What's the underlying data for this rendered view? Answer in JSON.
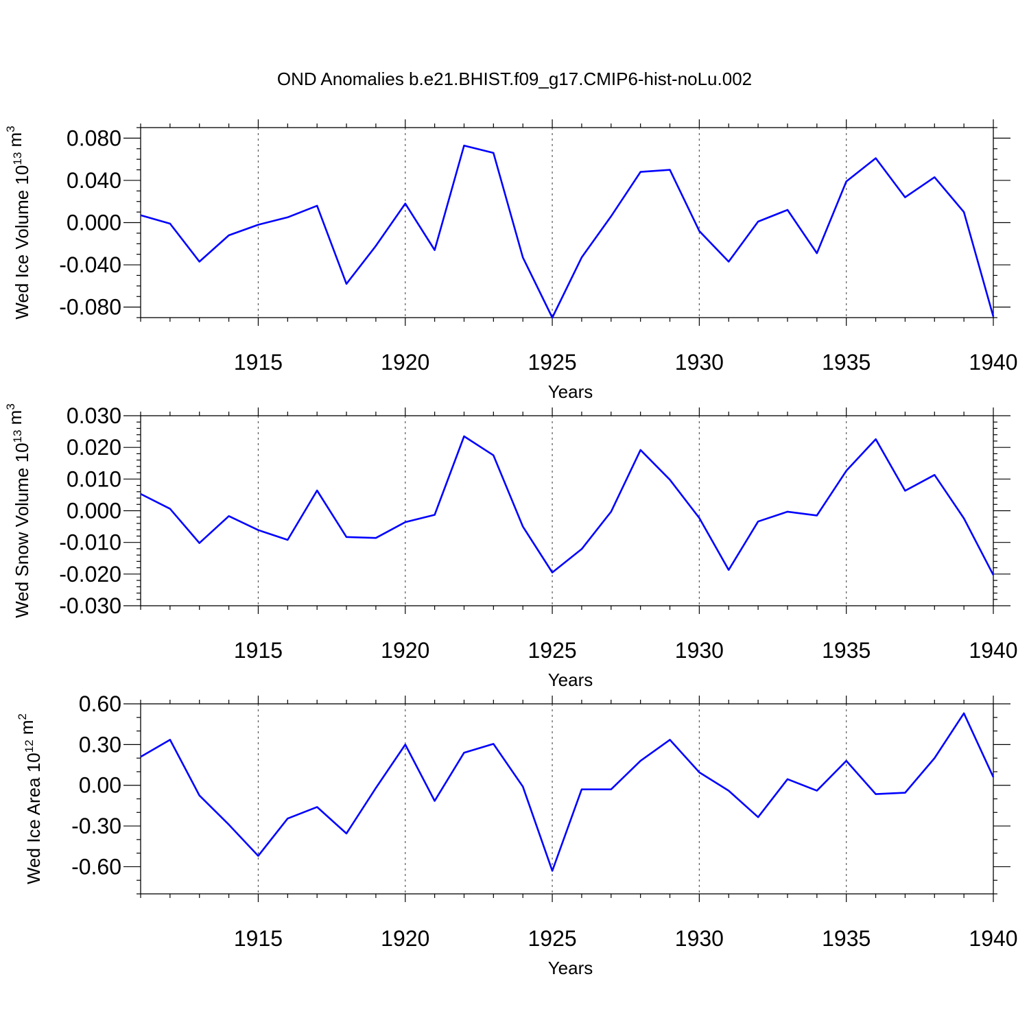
{
  "title": "OND Anomalies b.e21.BHIST.f09_g17.CMIP6-hist-noLu.002",
  "line_color": "#0000ff",
  "chart_data": [
    {
      "type": "line",
      "ylabel": "Wed Ice Volume 10",
      "ylabel_exp": "13",
      "ylabel_unit": " m",
      "ylabel_unit_exp": "3",
      "xlabel": "Years",
      "xlim": [
        1911,
        1940
      ],
      "ylim": [
        -0.09,
        0.09
      ],
      "yticks": [
        -0.08,
        -0.04,
        0.0,
        0.04,
        0.08
      ],
      "ytick_labels": [
        "-0.080",
        "-0.040",
        "0.000",
        "0.040",
        "0.080"
      ],
      "y_minor_step": 0.01,
      "xticks": [
        1915,
        1920,
        1925,
        1930,
        1935,
        1940
      ],
      "xtick_labels": [
        "1915",
        "1920",
        "1925",
        "1930",
        "1935",
        "1940"
      ],
      "x": [
        1911,
        1912,
        1913,
        1914,
        1915,
        1916,
        1917,
        1918,
        1919,
        1920,
        1921,
        1922,
        1923,
        1924,
        1925,
        1926,
        1927,
        1928,
        1929,
        1930,
        1931,
        1932,
        1933,
        1934,
        1935,
        1936,
        1937,
        1938,
        1939,
        1940
      ],
      "values": [
        0.007,
        -0.001,
        -0.037,
        -0.012,
        -0.002,
        0.005,
        0.016,
        -0.058,
        -0.022,
        0.018,
        -0.026,
        0.073,
        0.066,
        -0.033,
        -0.09,
        -0.033,
        0.006,
        0.048,
        0.05,
        -0.008,
        -0.037,
        0.001,
        0.012,
        -0.029,
        0.039,
        0.061,
        0.024,
        0.043,
        0.01,
        -0.089
      ]
    },
    {
      "type": "line",
      "ylabel": "Wed Snow Volume 10",
      "ylabel_exp": "13",
      "ylabel_unit": " m",
      "ylabel_unit_exp": "3",
      "xlabel": "Years",
      "xlim": [
        1911,
        1940
      ],
      "ylim": [
        -0.03,
        0.03
      ],
      "yticks": [
        -0.03,
        -0.02,
        -0.01,
        0.0,
        0.01,
        0.02,
        0.03
      ],
      "ytick_labels": [
        "-0.030",
        "-0.020",
        "-0.010",
        "0.000",
        "0.010",
        "0.020",
        "0.030"
      ],
      "y_minor_step": 0.002,
      "xticks": [
        1915,
        1920,
        1925,
        1930,
        1935,
        1940
      ],
      "xtick_labels": [
        "1915",
        "1920",
        "1925",
        "1930",
        "1935",
        "1940"
      ],
      "x": [
        1911,
        1912,
        1913,
        1914,
        1915,
        1916,
        1917,
        1918,
        1919,
        1920,
        1921,
        1922,
        1923,
        1924,
        1925,
        1926,
        1927,
        1928,
        1929,
        1930,
        1931,
        1932,
        1933,
        1934,
        1935,
        1936,
        1937,
        1938,
        1939,
        1940
      ],
      "values": [
        0.0053,
        0.0006,
        -0.0102,
        -0.0017,
        -0.0061,
        -0.0092,
        0.0064,
        -0.0083,
        -0.0086,
        -0.0036,
        -0.0013,
        0.0235,
        0.0175,
        -0.005,
        -0.0195,
        -0.0121,
        -0.0003,
        0.0192,
        0.0098,
        -0.0023,
        -0.0187,
        -0.0034,
        -0.0003,
        -0.0015,
        0.0126,
        0.0226,
        0.0063,
        0.0113,
        -0.0024,
        -0.0203
      ]
    },
    {
      "type": "line",
      "ylabel": "Wed Ice Area 10",
      "ylabel_exp": "12",
      "ylabel_unit": " m",
      "ylabel_unit_exp": "2",
      "xlabel": "Years",
      "xlim": [
        1911,
        1940
      ],
      "ylim": [
        -0.8,
        0.6
      ],
      "yticks": [
        -0.6,
        -0.3,
        0.0,
        0.3,
        0.6
      ],
      "ytick_labels": [
        "-0.60",
        "-0.30",
        "0.00",
        "0.30",
        "0.60"
      ],
      "y_minor_step": 0.1,
      "xticks": [
        1915,
        1920,
        1925,
        1930,
        1935,
        1940
      ],
      "xtick_labels": [
        "1915",
        "1920",
        "1925",
        "1930",
        "1935",
        "1940"
      ],
      "x": [
        1911,
        1912,
        1913,
        1914,
        1915,
        1916,
        1917,
        1918,
        1919,
        1920,
        1921,
        1922,
        1923,
        1924,
        1925,
        1926,
        1927,
        1928,
        1929,
        1930,
        1931,
        1932,
        1933,
        1934,
        1935,
        1936,
        1937,
        1938,
        1939,
        1940
      ],
      "values": [
        0.21,
        0.335,
        -0.075,
        -0.29,
        -0.52,
        -0.245,
        -0.16,
        -0.355,
        -0.02,
        0.3,
        -0.115,
        0.24,
        0.305,
        -0.01,
        -0.63,
        -0.03,
        -0.03,
        0.18,
        0.335,
        0.095,
        -0.04,
        -0.235,
        0.045,
        -0.04,
        0.18,
        -0.065,
        -0.055,
        0.2,
        0.53,
        0.06
      ]
    }
  ]
}
